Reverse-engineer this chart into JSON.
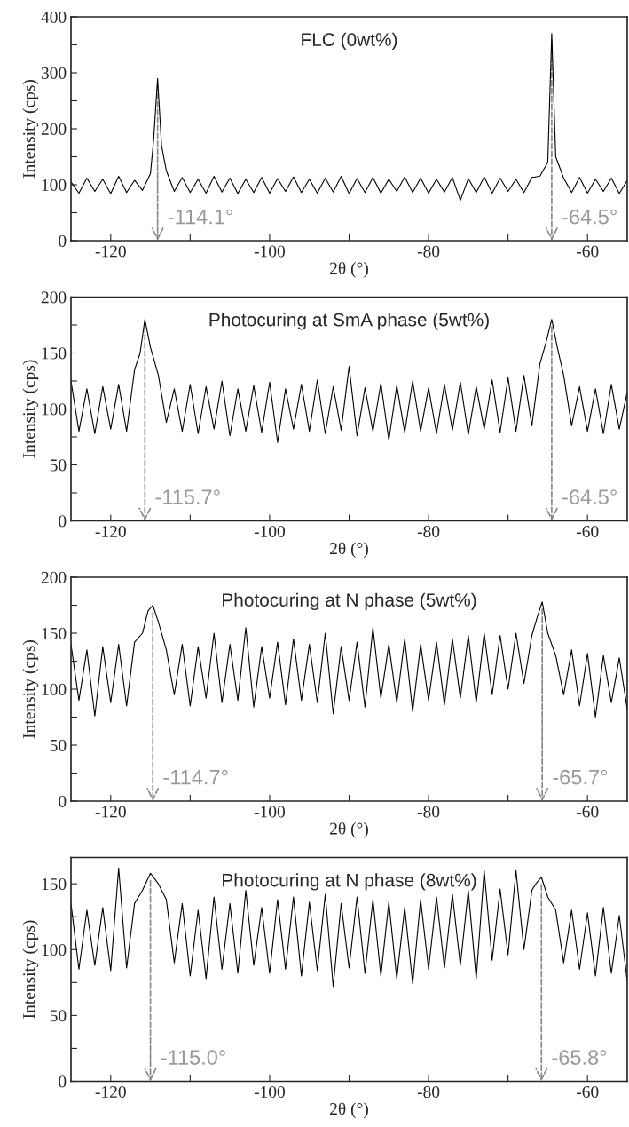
{
  "chart_data": [
    {
      "type": "line",
      "title": "FLC (0wt%)",
      "xlabel": "2θ (°)",
      "ylabel": "Intensity (cps)",
      "xlim": [
        -125,
        -55
      ],
      "ylim": [
        0,
        400
      ],
      "xticks": [
        -120,
        {
          "value": -110,
          "label": null
        },
        -100,
        {
          "value": -90,
          "label": null
        },
        -80,
        {
          "value": -70,
          "label": null
        },
        -60
      ],
      "yticks": [
        0,
        {
          "value": 50,
          "label": null
        },
        100,
        {
          "value": 150,
          "label": null
        },
        200,
        {
          "value": 250,
          "label": null
        },
        300,
        {
          "value": 350,
          "label": null
        },
        400
      ],
      "grid": false,
      "legend": false,
      "annotations": [
        {
          "text": "-114.1°",
          "x": -114.1,
          "y": 290
        },
        {
          "text": "-64.5°",
          "x": -64.5,
          "y": 370
        }
      ],
      "series": [
        {
          "color": "#000000",
          "x": [
            -125,
            -124,
            -123,
            -122,
            -121,
            -120,
            -119,
            -118,
            -117,
            -116,
            -115,
            -114.6,
            -114.1,
            -113.6,
            -113,
            -112,
            -111,
            -110,
            -109,
            -108,
            -107,
            -106,
            -105,
            -104,
            -103,
            -102,
            -101,
            -100,
            -99,
            -98,
            -97,
            -96,
            -95,
            -94,
            -93,
            -92,
            -91,
            -90,
            -89,
            -88,
            -87,
            -86,
            -85,
            -84,
            -83,
            -82,
            -81,
            -80,
            -79,
            -78,
            -77,
            -76,
            -75,
            -74,
            -73,
            -72,
            -71,
            -70,
            -69,
            -68,
            -67,
            -66,
            -65,
            -64.5,
            -64,
            -63,
            -62,
            -61,
            -60,
            -59,
            -58,
            -57,
            -56,
            -55
          ],
          "values": [
            105,
            85,
            112,
            88,
            110,
            84,
            115,
            86,
            108,
            90,
            120,
            180,
            290,
            170,
            125,
            88,
            113,
            86,
            110,
            85,
            115,
            87,
            112,
            84,
            110,
            86,
            113,
            85,
            111,
            88,
            114,
            86,
            110,
            85,
            112,
            87,
            115,
            84,
            111,
            86,
            113,
            85,
            110,
            88,
            114,
            86,
            112,
            85,
            110,
            87,
            113,
            72,
            111,
            86,
            114,
            85,
            112,
            88,
            110,
            86,
            113,
            115,
            140,
            370,
            150,
            112,
            86,
            113,
            85,
            110,
            88,
            112,
            84,
            108
          ]
        }
      ]
    },
    {
      "type": "line",
      "title": "Photocuring at SmA phase (5wt%)",
      "xlabel": "2θ (°)",
      "ylabel": "Intensity (cps)",
      "xlim": [
        -125,
        -55
      ],
      "ylim": [
        0,
        200
      ],
      "xticks": [
        -120,
        {
          "value": -110,
          "label": null
        },
        -100,
        {
          "value": -90,
          "label": null
        },
        -80,
        {
          "value": -70,
          "label": null
        },
        -60
      ],
      "yticks": [
        0,
        {
          "value": 25,
          "label": null
        },
        50,
        {
          "value": 75,
          "label": null
        },
        100,
        {
          "value": 125,
          "label": null
        },
        150,
        {
          "value": 175,
          "label": null
        },
        200
      ],
      "grid": false,
      "legend": false,
      "annotations": [
        {
          "text": "-115.7°",
          "x": -115.7,
          "y": 180
        },
        {
          "text": "-64.5°",
          "x": -64.5,
          "y": 180
        }
      ],
      "series": [
        {
          "color": "#000000",
          "x": [
            -125,
            -124,
            -123,
            -122,
            -121,
            -120,
            -119,
            -118,
            -117,
            -116.3,
            -115.7,
            -115,
            -114,
            -113,
            -112,
            -111,
            -110,
            -109,
            -108,
            -107,
            -106,
            -105,
            -104,
            -103,
            -102,
            -101,
            -100,
            -99,
            -98,
            -97,
            -96,
            -95,
            -94,
            -93,
            -92,
            -91,
            -90,
            -89,
            -88,
            -87,
            -86,
            -85,
            -84,
            -83,
            -82,
            -81,
            -80,
            -79,
            -78,
            -77,
            -76,
            -75,
            -74,
            -73,
            -72,
            -71,
            -70,
            -69,
            -68,
            -67,
            -66,
            -65.2,
            -64.5,
            -63.8,
            -63,
            -62,
            -61,
            -60,
            -59,
            -58,
            -57,
            -56,
            -55
          ],
          "values": [
            125,
            80,
            118,
            78,
            120,
            82,
            122,
            80,
            135,
            150,
            180,
            155,
            130,
            88,
            118,
            80,
            122,
            78,
            120,
            82,
            125,
            76,
            118,
            80,
            121,
            79,
            124,
            70,
            118,
            82,
            122,
            80,
            126,
            78,
            120,
            81,
            138,
            76,
            119,
            80,
            123,
            72,
            121,
            79,
            125,
            80,
            119,
            78,
            122,
            81,
            124,
            77,
            120,
            82,
            126,
            79,
            128,
            80,
            130,
            85,
            140,
            160,
            180,
            155,
            130,
            85,
            120,
            80,
            118,
            78,
            122,
            82,
            115
          ]
        }
      ]
    },
    {
      "type": "line",
      "title": "Photocuring at N phase (5wt%)",
      "xlabel": "2θ (°)",
      "ylabel": "Intensity (cps)",
      "xlim": [
        -125,
        -55
      ],
      "ylim": [
        0,
        200
      ],
      "xticks": [
        -120,
        {
          "value": -110,
          "label": null
        },
        -100,
        {
          "value": -90,
          "label": null
        },
        -80,
        {
          "value": -70,
          "label": null
        },
        -60
      ],
      "yticks": [
        0,
        {
          "value": 25,
          "label": null
        },
        50,
        {
          "value": 75,
          "label": null
        },
        100,
        {
          "value": 125,
          "label": null
        },
        150,
        {
          "value": 175,
          "label": null
        },
        200
      ],
      "grid": false,
      "legend": false,
      "annotations": [
        {
          "text": "-114.7°",
          "x": -114.7,
          "y": 175
        },
        {
          "text": "-65.7°",
          "x": -65.7,
          "y": 178
        }
      ],
      "series": [
        {
          "color": "#000000",
          "x": [
            -125,
            -124,
            -123,
            -122,
            -121,
            -120,
            -119,
            -118,
            -117,
            -116,
            -115.3,
            -114.7,
            -114,
            -113,
            -112,
            -111,
            -110,
            -109,
            -108,
            -107,
            -106,
            -105,
            -104,
            -103,
            -102,
            -101,
            -100,
            -99,
            -98,
            -97,
            -96,
            -95,
            -94,
            -93,
            -92,
            -91,
            -90,
            -89,
            -88,
            -87,
            -86,
            -85,
            -84,
            -83,
            -82,
            -81,
            -80,
            -79,
            -78,
            -77,
            -76,
            -75,
            -74,
            -73,
            -72,
            -71,
            -70,
            -69,
            -68,
            -67,
            -66.3,
            -65.7,
            -65,
            -64,
            -63,
            -62,
            -61,
            -60,
            -59,
            -58,
            -57,
            -56,
            -55
          ],
          "values": [
            140,
            90,
            135,
            76,
            138,
            88,
            140,
            85,
            142,
            150,
            170,
            175,
            160,
            135,
            95,
            140,
            85,
            138,
            92,
            150,
            88,
            140,
            90,
            155,
            84,
            138,
            92,
            142,
            86,
            145,
            90,
            140,
            88,
            150,
            78,
            138,
            90,
            142,
            84,
            155,
            92,
            140,
            88,
            145,
            80,
            140,
            90,
            142,
            86,
            145,
            92,
            148,
            88,
            150,
            95,
            148,
            100,
            150,
            105,
            148,
            165,
            178,
            150,
            130,
            95,
            135,
            85,
            132,
            75,
            130,
            88,
            128,
            82
          ]
        }
      ]
    },
    {
      "type": "line",
      "title": "Photocuring at N phase (8wt%)",
      "xlabel": "2θ (°)",
      "ylabel": "Intensity (cps)",
      "xlim": [
        -125,
        -55
      ],
      "ylim": [
        0,
        170
      ],
      "xticks": [
        -120,
        {
          "value": -110,
          "label": null
        },
        -100,
        {
          "value": -90,
          "label": null
        },
        -80,
        {
          "value": -70,
          "label": null
        },
        -60
      ],
      "yticks": [
        0,
        {
          "value": 25,
          "label": null
        },
        50,
        {
          "value": 75,
          "label": null
        },
        100,
        {
          "value": 125,
          "label": null
        },
        150
      ],
      "grid": false,
      "legend": false,
      "annotations": [
        {
          "text": "-115.0°",
          "x": -115.0,
          "y": 158
        },
        {
          "text": "-65.8°",
          "x": -65.8,
          "y": 155
        }
      ],
      "series": [
        {
          "color": "#000000",
          "x": [
            -125,
            -124,
            -123,
            -122,
            -121,
            -120,
            -119,
            -118,
            -117,
            -116,
            -115,
            -114,
            -113,
            -112,
            -111,
            -110,
            -109,
            -108,
            -107,
            -106,
            -105,
            -104,
            -103,
            -102,
            -101,
            -100,
            -99,
            -98,
            -97,
            -96,
            -95,
            -94,
            -93,
            -92,
            -91,
            -90,
            -89,
            -88,
            -87,
            -86,
            -85,
            -84,
            -83,
            -82,
            -81,
            -80,
            -79,
            -78,
            -77,
            -76,
            -75,
            -74,
            -73,
            -72,
            -71,
            -70,
            -69,
            -68,
            -67,
            -66.5,
            -65.8,
            -65,
            -64,
            -63,
            -62,
            -61,
            -60,
            -59,
            -58,
            -57,
            -56,
            -55
          ],
          "values": [
            135,
            85,
            130,
            88,
            132,
            84,
            162,
            86,
            135,
            145,
            158,
            150,
            138,
            90,
            135,
            80,
            130,
            78,
            140,
            85,
            135,
            82,
            145,
            88,
            132,
            82,
            138,
            85,
            140,
            80,
            136,
            84,
            142,
            72,
            135,
            86,
            140,
            82,
            138,
            80,
            136,
            78,
            132,
            74,
            138,
            85,
            140,
            86,
            142,
            88,
            145,
            78,
            160,
            92,
            146,
            96,
            160,
            100,
            145,
            150,
            155,
            140,
            130,
            90,
            130,
            85,
            128,
            80,
            132,
            82,
            126,
            76
          ]
        }
      ]
    }
  ]
}
